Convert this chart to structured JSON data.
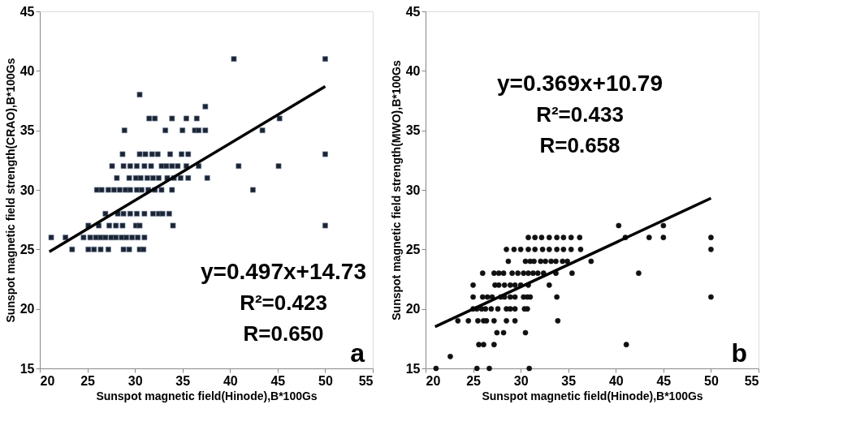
{
  "chart_data": [
    {
      "type": "scatter",
      "xlabel": "Sunspot magnetic field(Hinode),B*100Gs",
      "ylabel": "Sunspot magnetic field strength(CRAO),B*100Gs",
      "xlim": [
        20,
        55
      ],
      "xticks": [
        20,
        25,
        30,
        35,
        40,
        45,
        50,
        55
      ],
      "ylim": [
        15,
        45
      ],
      "yticks": [
        15,
        20,
        25,
        30,
        35,
        40,
        45
      ],
      "annotations": [
        "y=0.497x+14.73",
        "R²=0.423",
        "R=0.650",
        "a"
      ],
      "series": [
        {
          "type": "scatter",
          "marker": "square",
          "color": "#1c2433",
          "x": [
            23.4,
            25.1,
            25.7,
            26.4,
            27.2,
            28.8,
            29.4,
            30.5,
            30.9,
            21.2,
            22.7,
            24.6,
            25.3,
            25.9,
            26.4,
            26.9,
            27.5,
            28.0,
            28.6,
            29.1,
            29.7,
            30.3,
            31.0,
            25.1,
            26.2,
            27.3,
            28.0,
            28.7,
            30.1,
            30.5,
            34.0,
            50,
            26.9,
            28.2,
            28.8,
            29.5,
            30.2,
            31.0,
            31.9,
            32.5,
            32.9,
            33.6,
            26.0,
            26.5,
            27.2,
            27.8,
            28.4,
            29.0,
            29.5,
            30.2,
            30.7,
            31.4,
            32.1,
            32.8,
            33.9,
            42.4,
            28.1,
            29.4,
            30.1,
            30.6,
            31.3,
            31.9,
            32.5,
            33.4,
            34.1,
            34.8,
            35.6,
            37.6,
            27.6,
            28.8,
            29.5,
            30.2,
            31.0,
            31.7,
            32.8,
            33.3,
            33.9,
            34.5,
            35.4,
            36.7,
            40.9,
            45.1,
            28.7,
            30.5,
            31.1,
            31.8,
            32.4,
            33.7,
            34.9,
            35.6,
            50,
            28.9,
            33.2,
            35.0,
            36.3,
            36.7,
            37.4,
            43.4,
            31.5,
            32.1,
            33.9,
            35.4,
            36.5,
            45.2,
            37.4,
            30.5,
            40.4,
            50
          ],
          "values": [
            25,
            25,
            25,
            25,
            25,
            25,
            25,
            25,
            25,
            26,
            26,
            26,
            26,
            26,
            26,
            26,
            26,
            26,
            26,
            26,
            26,
            26,
            26,
            27,
            27,
            27,
            27,
            27,
            27,
            27,
            27,
            27,
            28,
            28,
            28,
            28,
            28,
            28,
            28,
            28,
            28,
            28,
            30,
            30,
            30,
            30,
            30,
            30,
            30,
            30,
            30,
            30,
            30,
            30,
            30,
            30,
            31,
            31,
            31,
            31,
            31,
            31,
            31,
            31,
            31,
            31,
            31,
            31,
            32,
            32,
            32,
            32,
            32,
            32,
            32,
            32,
            32,
            32,
            32,
            32,
            32,
            32,
            33,
            33,
            33,
            33,
            33,
            33,
            33,
            33,
            33,
            35,
            35,
            35,
            35,
            35,
            35,
            35,
            36,
            36,
            36,
            36,
            36,
            36,
            37,
            38,
            41,
            41
          ]
        },
        {
          "type": "line",
          "color": "#000000",
          "line_style": "solid",
          "x": [
            21,
            50
          ],
          "values": [
            24.8,
            38.7
          ]
        }
      ]
    },
    {
      "type": "scatter",
      "xlabel": "Sunspot magnetic field(Hinode),B*100Gs",
      "ylabel": "Sunspot magnetic field strength(MWO),B*100Gs",
      "xlim": [
        20,
        55
      ],
      "xticks": [
        20,
        25,
        30,
        35,
        40,
        45,
        50,
        55
      ],
      "ylim": [
        15,
        45
      ],
      "yticks": [
        15,
        20,
        25,
        30,
        35,
        40,
        45
      ],
      "annotations": [
        "y=0.369x+10.79",
        "R²=0.433",
        "R=0.658",
        "b"
      ],
      "series": [
        {
          "type": "scatter",
          "marker": "circle",
          "color": "#111111",
          "x": [
            21.1,
            25.4,
            26.7,
            30.9,
            22.6,
            25.6,
            26.1,
            27.2,
            41.1,
            27.5,
            28.2,
            30.5,
            23.4,
            24.5,
            25.5,
            26.1,
            26.4,
            27.2,
            28.5,
            29.4,
            33.9,
            25.0,
            25.4,
            25.9,
            26.3,
            26.9,
            27.6,
            28.5,
            28.9,
            29.4,
            30.4,
            30.7,
            25.0,
            26.0,
            26.5,
            27.0,
            27.9,
            28.3,
            28.9,
            29.4,
            30.3,
            30.7,
            31.0,
            33.8,
            50,
            25.0,
            27.3,
            27.7,
            28.3,
            28.9,
            29.4,
            30.0,
            30.8,
            33.0,
            26.0,
            27.2,
            27.7,
            28.2,
            29.1,
            29.7,
            30.3,
            30.8,
            31.3,
            31.8,
            32.4,
            33.7,
            35.4,
            42.4,
            28.7,
            30.5,
            31.0,
            31.4,
            32.1,
            32.6,
            33.2,
            33.7,
            34.4,
            34.9,
            37.4,
            28.5,
            29.3,
            30.0,
            30.8,
            31.5,
            32.3,
            33.0,
            33.8,
            34.5,
            35.3,
            36.3,
            50,
            30.8,
            31.5,
            32.2,
            33.0,
            33.8,
            34.5,
            35.3,
            36.2,
            41.0,
            43.5,
            45.0,
            50,
            40.3,
            45.0
          ],
          "values": [
            15,
            15,
            15,
            15,
            16,
            17,
            17,
            17,
            17,
            18,
            18,
            18,
            19,
            19,
            19,
            19,
            19,
            19,
            19,
            19,
            19,
            20,
            20,
            20,
            20,
            20,
            20,
            20,
            20,
            20,
            20,
            20,
            21,
            21,
            21,
            21,
            21,
            21,
            21,
            21,
            21,
            21,
            21,
            21,
            21,
            22,
            22,
            22,
            22,
            22,
            22,
            22,
            22,
            22,
            23,
            23,
            23,
            23,
            23,
            23,
            23,
            23,
            23,
            23,
            23,
            23,
            23,
            23,
            24,
            24,
            24,
            24,
            24,
            24,
            24,
            24,
            24,
            24,
            24,
            25,
            25,
            25,
            25,
            25,
            25,
            25,
            25,
            25,
            25,
            25,
            25,
            26,
            26,
            26,
            26,
            26,
            26,
            26,
            26,
            26,
            26,
            26,
            26,
            27,
            27
          ]
        },
        {
          "type": "line",
          "color": "#000000",
          "line_style": "solid",
          "x": [
            21,
            50
          ],
          "values": [
            18.5,
            29.3
          ]
        }
      ]
    }
  ]
}
